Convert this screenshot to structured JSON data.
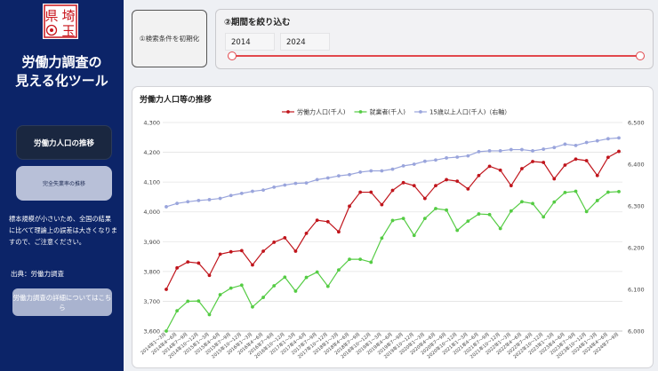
{
  "sidebar": {
    "logo_text": "県埼玉",
    "title_line1": "労働力調査の",
    "title_line2": "見える化ツール",
    "nav": [
      {
        "label": "労働力人口の推移"
      },
      {
        "label": "完全失業率の推移"
      }
    ],
    "note": "標本規模が小さいため、全国の結果に比べて理論上の誤差は大きくなりますので、ご注意ください。",
    "source": "出典：労働力調査",
    "detail_button": "労働力調査の詳細についてはこちら"
  },
  "filters": {
    "reset_label": "①検索条件を初期化",
    "period_title": "②期間を絞り込む",
    "start_year": "2014",
    "end_year": "2024",
    "range_selected": [
      0,
      1
    ]
  },
  "chart": {
    "title": "労働力人口等の推移"
  },
  "colors": {
    "sidebar_bg": "#0c2468",
    "labor": "#c0151c",
    "employed": "#55cc44",
    "population": "#9aa5dc",
    "slider": "#e2474c"
  },
  "chart_data": {
    "type": "line",
    "title": "労働力人口等の推移",
    "x": [
      "2014年1～3月",
      "2014年4～6月",
      "2014年7～9月",
      "2014年10～12月",
      "2015年1～3月",
      "2015年4～6月",
      "2015年7～9月",
      "2015年10～12月",
      "2016年1～3月",
      "2016年4～6月",
      "2016年7～9月",
      "2016年10～12月",
      "2017年1～3月",
      "2017年4～6月",
      "2017年7～9月",
      "2017年10～12月",
      "2018年1～3月",
      "2018年4～6月",
      "2018年7～9月",
      "2018年10～12月",
      "2019年1～3月",
      "2019年4～6月",
      "2019年7～9月",
      "2019年10～12月",
      "2020年1～3月",
      "2020年4～6月",
      "2020年7～9月",
      "2020年10～12月",
      "2021年1～3月",
      "2021年4～6月",
      "2021年7～9月",
      "2021年10～12月",
      "2022年1～3月",
      "2022年4～6月",
      "2022年7～9月",
      "2022年10～12月",
      "2023年1～3月",
      "2023年4～6月",
      "2023年7～9月",
      "2023年10～12月",
      "2024年1～3月",
      "2024年4～6月",
      "2024年7～9月"
    ],
    "x_tick_labels": [
      "2014年1～3月",
      "2014年4～6月",
      "2014年7～9月",
      "2014年10～12月",
      "2015年1～3月",
      "2015年4～6月",
      "2015年7～9月",
      "2015年10～12月",
      "2016年1～3月",
      "2016年4～6月",
      "2016年7～9月",
      "2016年10～12月",
      "2017年1～3月",
      "2017年4～6月",
      "2017年7～9月",
      "2017年10～12月",
      "2018年1～3月",
      "2018年4～6月",
      "2018年7～9月",
      "2018年10～12月",
      "2019年1～3月",
      "2019年4～6月",
      "2019年7～9月",
      "2019年10～12月",
      "2020年1～3月",
      "2020年4～6月",
      "2020年7～9月",
      "2020年10～12月",
      "2021年1～3月",
      "2021年4～6月",
      "2021年7～9月",
      "2021年10～12月",
      "2022年1～3月",
      "2022年4～6月",
      "2022年7～9月",
      "2022年10～12月",
      "2023年1～3月",
      "2023年4～6月",
      "2023年7～9月",
      "2023年10～12月",
      "2024年1～3月",
      "2024年4～6月",
      "2024年7～9月"
    ],
    "series": [
      {
        "name": "労働力人口(千人)",
        "axis": "left",
        "values": [
          3740,
          3812,
          3832,
          3828,
          3787,
          3858,
          3866,
          3870,
          3822,
          3868,
          3898,
          3913,
          3868,
          3928,
          3972,
          3967,
          3933,
          4019,
          4066,
          4066,
          4024,
          4072,
          4098,
          4088,
          4045,
          4088,
          4108,
          4103,
          4077,
          4122,
          4153,
          4140,
          4088,
          4145,
          4169,
          4166,
          4111,
          4157,
          4177,
          4172,
          4122,
          4183,
          4203
        ]
      },
      {
        "name": "就業者(千人)",
        "axis": "left",
        "values": [
          3600,
          3668,
          3700,
          3701,
          3655,
          3722,
          3744,
          3754,
          3681,
          3713,
          3752,
          3781,
          3734,
          3780,
          3798,
          3750,
          3805,
          3841,
          3841,
          3831,
          3912,
          3971,
          3978,
          3921,
          3978,
          4011,
          4006,
          3938,
          3969,
          3993,
          3991,
          3944,
          4003,
          4034,
          4028,
          3983,
          4033,
          4065,
          4069,
          4001,
          4038,
          4066,
          4068
        ]
      },
      {
        "name": "15歳以上人口(千人)（右軸）",
        "axis": "right",
        "values": [
          6298,
          6306,
          6310,
          6313,
          6315,
          6318,
          6325,
          6330,
          6335,
          6338,
          6345,
          6350,
          6354,
          6355,
          6363,
          6367,
          6372,
          6375,
          6381,
          6384,
          6384,
          6388,
          6396,
          6400,
          6407,
          6410,
          6415,
          6417,
          6420,
          6430,
          6432,
          6432,
          6435,
          6435,
          6432,
          6436,
          6440,
          6448,
          6445,
          6452,
          6456,
          6461,
          6463
        ]
      }
    ],
    "y_left": {
      "ticks": [
        "3,600",
        "3,700",
        "3,800",
        "3,900",
        "4,000",
        "4,100",
        "4,200",
        "4,300"
      ],
      "range": [
        3600,
        4300
      ]
    },
    "y_right": {
      "ticks": [
        "6,000",
        "6,100",
        "6,200",
        "6,300",
        "6,400",
        "6,500"
      ],
      "range": [
        6000,
        6500
      ]
    },
    "legend_position": "top-center",
    "grid": "horizontal"
  }
}
